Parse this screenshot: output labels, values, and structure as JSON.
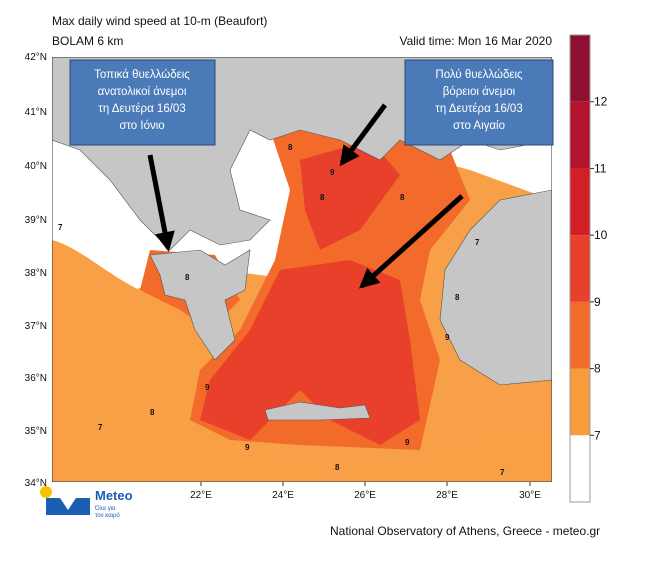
{
  "header": {
    "title": "Max daily wind speed at 10-m (Beaufort)",
    "subtitle": "BOLAM 6 km",
    "valid_time": "Valid time: Mon 16 Mar 2020"
  },
  "latitude_labels": [
    "42°N",
    "41°N",
    "40°N",
    "39°N",
    "38°N",
    "37°N",
    "36°N",
    "35°N",
    "34°N"
  ],
  "longitude_labels": [
    "22°E",
    "24°E",
    "26°E",
    "28°E",
    "30°E"
  ],
  "annotations": [
    {
      "lines": [
        "Τοπικά θυελλώδεις",
        "ανατολικοί άνεμοι",
        "τη Δευτέρα 16/03",
        "στο Ιόνιο"
      ]
    },
    {
      "lines": [
        "Πολύ θυελλώδεις",
        "βόρειοι άνεμοι",
        "τη Δευτέρα 16/03",
        "στο Αιγαίο"
      ]
    }
  ],
  "contour_labels": [
    7,
    7,
    8,
    8,
    9,
    9,
    8,
    8,
    9,
    7,
    8,
    9,
    9,
    8,
    8,
    7
  ],
  "colorbar": {
    "range": [
      6,
      13
    ],
    "ticks": [
      7,
      8,
      9,
      10,
      11,
      12
    ],
    "colors": [
      "#ffffff",
      "#f89b3d",
      "#f26b2b",
      "#e8402a",
      "#d21f26",
      "#b3132c",
      "#8f0f30"
    ]
  },
  "footer": "National Observatory of Athens, Greece - meteo.gr",
  "logo": {
    "name": "Meteo",
    "tagline": [
      "Όλα για",
      "τον καιρό"
    ]
  }
}
